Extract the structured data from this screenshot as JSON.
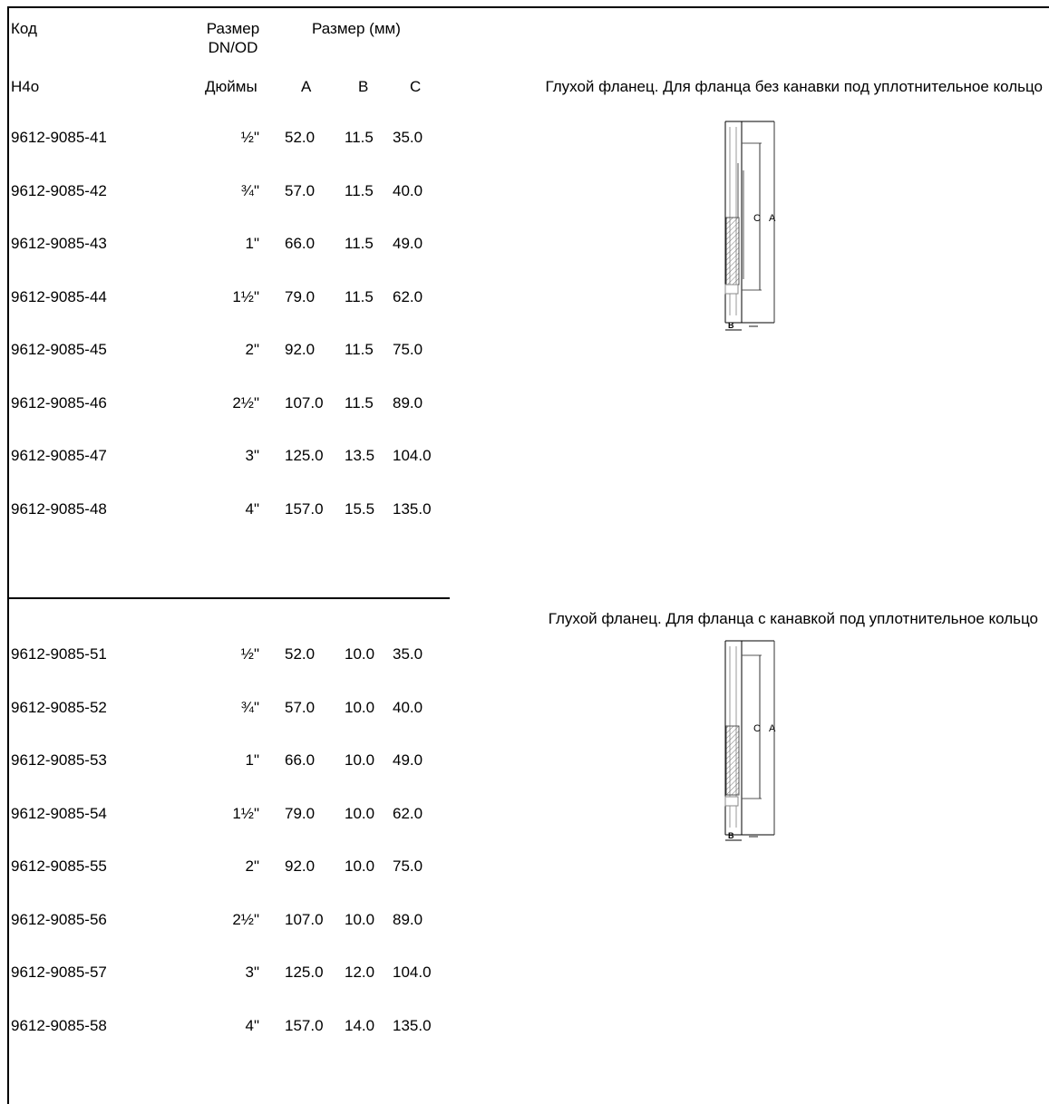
{
  "header": {
    "code": "Код",
    "size_dn_od": "Размер DN/OD",
    "size_mm": "Размер (мм)",
    "h4o": "H4o",
    "inches": "Дюймы",
    "col_a": "A",
    "col_b": "B",
    "col_c": "C"
  },
  "section1": {
    "description": "Глухой фланец. Для фланца без канавки под уплотнительное кольцо",
    "drawing_labels": {
      "c": "C",
      "a": "A",
      "b": "B"
    },
    "rows": [
      {
        "code": "9612-9085-41",
        "inches": "½\"",
        "a": "52.0",
        "b": "11.5",
        "c": "35.0"
      },
      {
        "code": "9612-9085-42",
        "inches": "¾\"",
        "a": "57.0",
        "b": "11.5",
        "c": "40.0"
      },
      {
        "code": "9612-9085-43",
        "inches": "1\"",
        "a": "66.0",
        "b": "11.5",
        "c": "49.0"
      },
      {
        "code": "9612-9085-44",
        "inches": "1½\"",
        "a": "79.0",
        "b": "11.5",
        "c": "62.0"
      },
      {
        "code": "9612-9085-45",
        "inches": "2\"",
        "a": "92.0",
        "b": "11.5",
        "c": "75.0"
      },
      {
        "code": "9612-9085-46",
        "inches": "2½\"",
        "a": "107.0",
        "b": "11.5",
        "c": "89.0"
      },
      {
        "code": "9612-9085-47",
        "inches": "3\"",
        "a": "125.0",
        "b": "13.5",
        "c": "104.0"
      },
      {
        "code": "9612-9085-48",
        "inches": "4\"",
        "a": "157.0",
        "b": "15.5",
        "c": "135.0"
      }
    ]
  },
  "section2": {
    "description": "Глухой фланец. Для фланца с канавкой под уплотнительное кольцо",
    "drawing_labels": {
      "c": "C",
      "a": "A",
      "b": "B"
    },
    "rows": [
      {
        "code": "9612-9085-51",
        "inches": "½\"",
        "a": "52.0",
        "b": "10.0",
        "c": "35.0"
      },
      {
        "code": "9612-9085-52",
        "inches": "¾\"",
        "a": "57.0",
        "b": "10.0",
        "c": "40.0"
      },
      {
        "code": "9612-9085-53",
        "inches": "1\"",
        "a": "66.0",
        "b": "10.0",
        "c": "49.0"
      },
      {
        "code": "9612-9085-54",
        "inches": "1½\"",
        "a": "79.0",
        "b": "10.0",
        "c": "62.0"
      },
      {
        "code": "9612-9085-55",
        "inches": "2\"",
        "a": "92.0",
        "b": "10.0",
        "c": "75.0"
      },
      {
        "code": "9612-9085-56",
        "inches": "2½\"",
        "a": "107.0",
        "b": "10.0",
        "c": "89.0"
      },
      {
        "code": "9612-9085-57",
        "inches": "3\"",
        "a": "125.0",
        "b": "12.0",
        "c": "104.0"
      },
      {
        "code": "9612-9085-58",
        "inches": "4\"",
        "a": "157.0",
        "b": "14.0",
        "c": "135.0"
      }
    ]
  }
}
